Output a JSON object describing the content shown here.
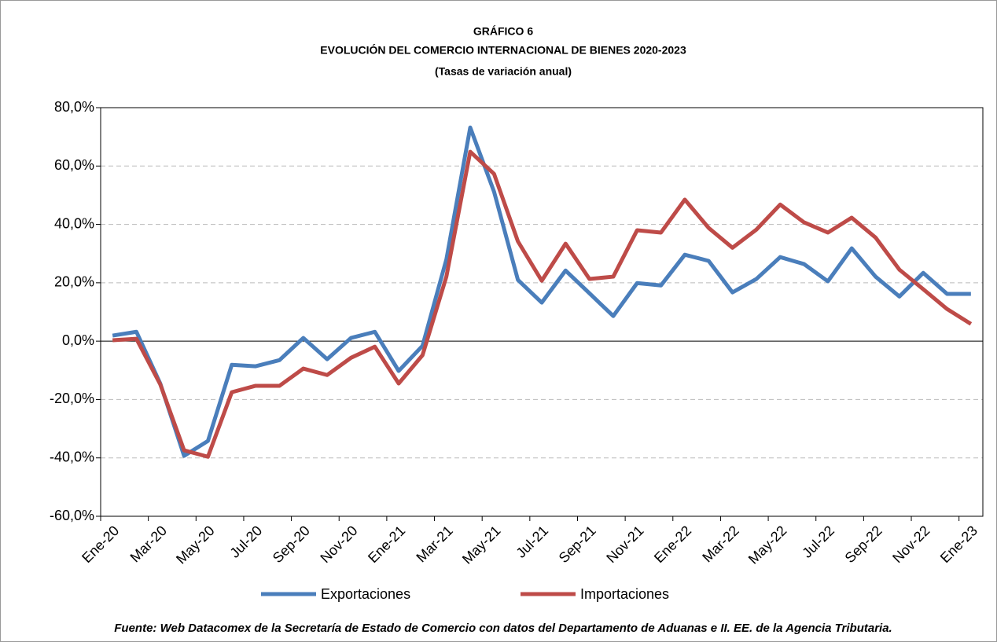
{
  "chart_data": {
    "type": "line",
    "title": "GRÁFICO 6",
    "subtitle": "EVOLUCIÓN DEL COMERCIO INTERNACIONAL DE BIENES 2020-2023",
    "subtitle2": "(Tasas de variación anual)",
    "source": "Fuente: Web Datacomex de la Secretaría de Estado de Comercio con datos del Departamento de Aduanas e II. EE. de la Agencia Tributaria.",
    "categories": [
      "Ene-20",
      null,
      "Mar-20",
      null,
      "May-20",
      null,
      "Jul-20",
      null,
      "Sep-20",
      null,
      "Nov-20",
      null,
      "Ene-21",
      null,
      "Mar-21",
      null,
      "May-21",
      null,
      "Jul-21",
      null,
      "Sep-21",
      null,
      "Nov-21",
      null,
      "Ene-22",
      null,
      "Mar-22",
      null,
      "May-22",
      null,
      "Jul-22",
      null,
      "Sep-22",
      null,
      "Nov-22",
      null,
      "Ene-23"
    ],
    "series": [
      {
        "name": "Exportaciones",
        "color": "#4a7ebb",
        "values": [
          1.9,
          3.2,
          -14.5,
          -39.3,
          -34.2,
          -8.1,
          -8.6,
          -6.5,
          1.1,
          -6.2,
          1.1,
          3.2,
          -10.2,
          -1.6,
          28,
          73.2,
          51.2,
          21,
          13.2,
          24.2,
          16.4,
          8.6,
          19.9,
          19.1,
          29.6,
          27.5,
          16.7,
          21.3,
          28.8,
          26.4,
          20.5,
          31.8,
          22.1,
          15.3,
          23.4,
          16.2,
          16.2
        ]
      },
      {
        "name": "Importaciones",
        "color": "#be4b48",
        "values": [
          0.3,
          0.8,
          -14.8,
          -37.4,
          -39.6,
          -17.5,
          -15.3,
          -15.3,
          -9.4,
          -11.6,
          -5.7,
          -1.9,
          -14.5,
          -4.8,
          22.1,
          64.9,
          57.3,
          34.2,
          20.7,
          33.4,
          21.3,
          22.1,
          38,
          37.2,
          48.5,
          38.8,
          32,
          38.2,
          46.8,
          40.7,
          37.2,
          42.3,
          35.5,
          24.5,
          17.8,
          11,
          5.9
        ]
      }
    ],
    "ylim": [
      -60,
      80
    ],
    "yticks": [
      {
        "value": -60,
        "label": "-60,0%"
      },
      {
        "value": -40,
        "label": "-40,0%"
      },
      {
        "value": -20,
        "label": "-20,0%"
      },
      {
        "value": 0,
        "label": "0,0%"
      },
      {
        "value": 20,
        "label": "20,0%"
      },
      {
        "value": 40,
        "label": "40,0%"
      },
      {
        "value": 60,
        "label": "60,0%"
      },
      {
        "value": 80,
        "label": "80,0%"
      }
    ],
    "grid": true
  }
}
